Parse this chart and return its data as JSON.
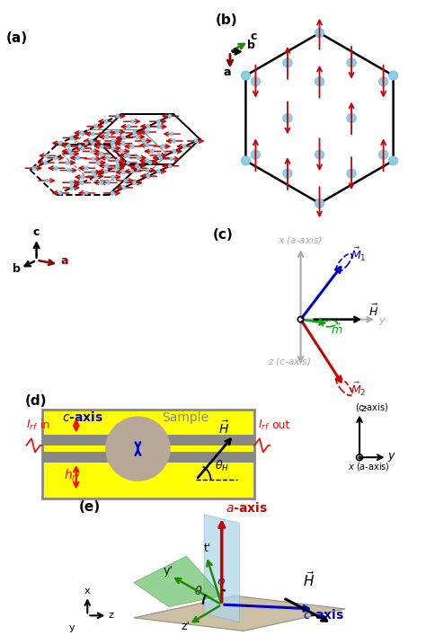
{
  "fig_width": 4.74,
  "fig_height": 7.17,
  "bg_color": "#ffffff",
  "atom_color": "#87CEEB",
  "spin_color": "#cc0000",
  "hex_color": "#000000",
  "panel_a": {
    "label": "(a)",
    "xlim": [
      -1.1,
      1.1
    ],
    "ylim": [
      -1.15,
      1.15
    ]
  },
  "panel_b": {
    "label": "(b)"
  },
  "panel_c": {
    "label": "(c)",
    "axis_color": "#aaaaaa",
    "M1_color": "#0000cc",
    "M2_color": "#cc0000",
    "m_color": "#00aa00",
    "H_color": "#000000"
  },
  "panel_d": {
    "label": "(d)",
    "bg_color": "#ffff00",
    "strip_color": "#888888",
    "border_color": "#888888",
    "sample_color": "#b8a898",
    "red_color": "#ff0000",
    "blue_color": "#0000cc",
    "black": "#000000"
  },
  "panel_e": {
    "label": "(e)",
    "brown_color": "#c8b89a",
    "green_color": "#7ec87e",
    "blue_color": "#a0c8e0",
    "red_color": "#cc0000",
    "caxis_color": "#0000cc",
    "black": "#000000"
  }
}
